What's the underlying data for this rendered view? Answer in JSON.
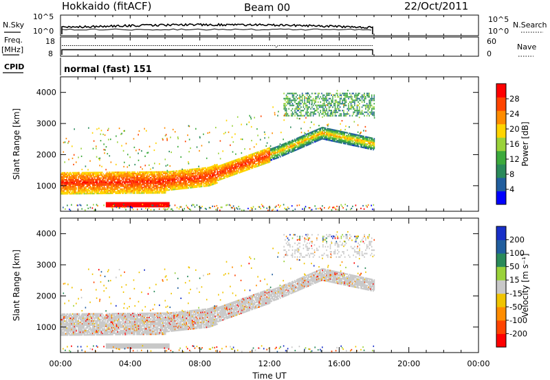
{
  "header": {
    "station": "Hokkaido (fitACF)",
    "beam": "Beam 00",
    "date": "22/Oct/2011"
  },
  "strip_nsky": {
    "left_label": "N.Sky",
    "right_label": "N.Search",
    "left_ticks": [
      "10^5",
      "10^0"
    ],
    "right_ticks": [
      "10^5",
      "10^0"
    ]
  },
  "strip_freq": {
    "left_label_1": "Freq.",
    "left_label_2": "[MHz]",
    "right_label": "Nave",
    "left_ticks": [
      "18",
      "8"
    ],
    "right_ticks": [
      "60",
      "0"
    ]
  },
  "cpid": {
    "label": "CPID",
    "value": "normal (fast) 151"
  },
  "colors": {
    "power_scale": [
      "#0000ff",
      "#215e9e",
      "#2a8a5a",
      "#3caa3c",
      "#9ad23a",
      "#ffd400",
      "#ff8c00",
      "#ff4400",
      "#ff0000"
    ],
    "velocity_scale": [
      "#ff0000",
      "#ff4400",
      "#ff8c00",
      "#f0c400",
      "#c8c8c8",
      "#9ad23a",
      "#2a8a5a",
      "#215e9e",
      "#1830c8"
    ],
    "ground_scatter": "#c8c8c8"
  },
  "chart_data": [
    {
      "type": "heatmap",
      "panel": "power",
      "xlabel": "",
      "ylabel": "Slant Range [km]",
      "xlim": [
        "00:00",
        "24:00"
      ],
      "ylim": [
        180,
        4500
      ],
      "y_ticks": [
        "1000",
        "2000",
        "3000",
        "4000"
      ],
      "colorbar": {
        "label": "Power [dB]",
        "ticks": [
          "4",
          "8",
          "12",
          "16",
          "20",
          "24",
          "28"
        ],
        "range": [
          0,
          30
        ]
      },
      "data_end_time": "18:00",
      "regions": [
        {
          "from": "00:00",
          "to": "06:00",
          "range_km": [
            700,
            1500
          ],
          "power_db": 27
        },
        {
          "from": "06:00",
          "to": "09:00",
          "range_km": [
            650,
            1500
          ],
          "power_db": 24
        },
        {
          "from": "09:00",
          "to": "12:00",
          "range_km": [
            1300,
            2100
          ],
          "power_db": 22
        },
        {
          "from": "12:00",
          "to": "18:00",
          "range_km": [
            1900,
            2800
          ],
          "power_db": 20
        },
        {
          "from": "13:00",
          "to": "18:00",
          "range_km": [
            3200,
            4000
          ],
          "power_db": 8
        }
      ]
    },
    {
      "type": "heatmap",
      "panel": "velocity",
      "xlabel": "Time UT",
      "ylabel": "Slant Range [km]",
      "xlim": [
        "00:00",
        "24:00"
      ],
      "ylim": [
        180,
        4500
      ],
      "x_ticks": [
        "00:00",
        "04:00",
        "08:00",
        "12:00",
        "16:00",
        "20:00",
        "00:00"
      ],
      "y_ticks": [
        "1000",
        "2000",
        "3000",
        "4000"
      ],
      "colorbar": {
        "label": "Velocity [m s⁻¹]",
        "ticks": [
          "200",
          "100",
          "50",
          "15",
          "-15",
          "-50",
          "-100",
          "-200"
        ]
      },
      "data_end_time": "18:00",
      "regions": [
        {
          "from": "00:00",
          "to": "07:00",
          "range_km": [
            700,
            1400
          ],
          "velocity": "ground scatter"
        },
        {
          "from": "07:00",
          "to": "12:00",
          "range_km": [
            1000,
            2100
          ],
          "velocity": "ground scatter"
        },
        {
          "from": "12:00",
          "to": "18:00",
          "range_km": [
            1900,
            2800
          ],
          "velocity": "ground scatter"
        },
        {
          "from": "14:30",
          "to": "16:30",
          "range_km": [
            3800,
            4100
          ],
          "velocity": "-200 to 200"
        }
      ]
    }
  ]
}
